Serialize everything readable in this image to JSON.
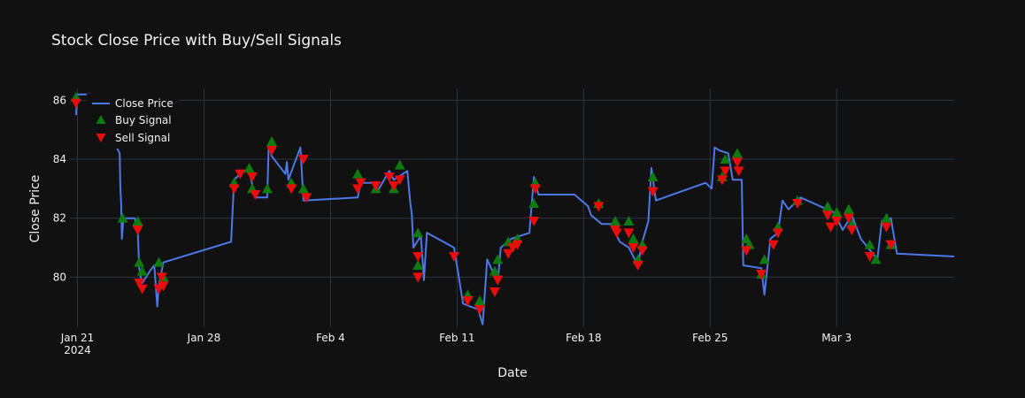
{
  "chart_data": {
    "type": "line",
    "title": "Stock Close Price with Buy/Sell Signals",
    "xlabel": "Date",
    "ylabel": "Close Price",
    "x_range": [
      "2024-01-20 14:00",
      "2024-03-09 12:00"
    ],
    "ylim": [
      78.3,
      86.4
    ],
    "x_ticks": [
      {
        "date": "2024-01-21",
        "label": "Jan 21",
        "sublabel": "2024"
      },
      {
        "date": "2024-01-28",
        "label": "Jan 28",
        "sublabel": ""
      },
      {
        "date": "2024-02-04",
        "label": "Feb 4",
        "sublabel": ""
      },
      {
        "date": "2024-02-11",
        "label": "Feb 11",
        "sublabel": ""
      },
      {
        "date": "2024-02-18",
        "label": "Feb 18",
        "sublabel": ""
      },
      {
        "date": "2024-02-25",
        "label": "Feb 25",
        "sublabel": ""
      },
      {
        "date": "2024-03-03",
        "label": "Mar 3",
        "sublabel": ""
      }
    ],
    "y_ticks": [
      80,
      82,
      84,
      86
    ],
    "grid": true,
    "legend": {
      "placement": "top-left",
      "entries": [
        "Close Price",
        "Buy Signal",
        "Sell Signal"
      ]
    },
    "series": [
      {
        "name": "Close Price",
        "kind": "line",
        "color": "#4c78e8",
        "points": [
          [
            "2024-01-20 22:00",
            85.5
          ],
          [
            "2024-01-21 00:00",
            86.2
          ],
          [
            "2024-01-21 18:00",
            86.2
          ],
          [
            "2024-01-23 08:00",
            84.2
          ],
          [
            "2024-01-23 09:00",
            83.0
          ],
          [
            "2024-01-23 10:00",
            82.5
          ],
          [
            "2024-01-23 11:00",
            81.3
          ],
          [
            "2024-01-23 13:00",
            82.0
          ],
          [
            "2024-01-24 04:00",
            82.0
          ],
          [
            "2024-01-24 08:00",
            81.6
          ],
          [
            "2024-01-24 10:00",
            80.3
          ],
          [
            "2024-01-24 12:00",
            80.0
          ],
          [
            "2024-01-24 14:00",
            79.8
          ],
          [
            "2024-01-25 00:00",
            80.2
          ],
          [
            "2024-01-25 06:00",
            80.4
          ],
          [
            "2024-01-25 10:00",
            79.0
          ],
          [
            "2024-01-25 12:00",
            79.7
          ],
          [
            "2024-01-25 18:00",
            80.5
          ],
          [
            "2024-01-29 12:00",
            81.2
          ],
          [
            "2024-01-29 16:00",
            83.3
          ],
          [
            "2024-01-30 04:00",
            83.6
          ],
          [
            "2024-01-30 12:00",
            83.6
          ],
          [
            "2024-01-30 20:00",
            82.7
          ],
          [
            "2024-01-31 12:00",
            82.7
          ],
          [
            "2024-01-31 14:00",
            84.5
          ],
          [
            "2024-01-31 18:00",
            84.1
          ],
          [
            "2024-02-01 12:00",
            83.5
          ],
          [
            "2024-02-01 14:00",
            83.9
          ],
          [
            "2024-02-01 16:00",
            83.3
          ],
          [
            "2024-02-02 08:00",
            84.4
          ],
          [
            "2024-02-02 12:00",
            82.6
          ],
          [
            "2024-02-05 12:00",
            82.7
          ],
          [
            "2024-02-05 16:00",
            83.2
          ],
          [
            "2024-02-06 12:00",
            83.2
          ],
          [
            "2024-02-06 14:00",
            82.9
          ],
          [
            "2024-02-07 06:00",
            83.6
          ],
          [
            "2024-02-07 12:00",
            83.3
          ],
          [
            "2024-02-08 06:00",
            83.6
          ],
          [
            "2024-02-08 10:00",
            82.5
          ],
          [
            "2024-02-08 12:00",
            82.1
          ],
          [
            "2024-02-08 14:00",
            81.0
          ],
          [
            "2024-02-09 00:00",
            81.4
          ],
          [
            "2024-02-09 04:00",
            79.9
          ],
          [
            "2024-02-09 08:00",
            81.5
          ],
          [
            "2024-02-10 20:00",
            81.0
          ],
          [
            "2024-02-11 08:00",
            79.1
          ],
          [
            "2024-02-12 04:00",
            78.9
          ],
          [
            "2024-02-12 10:00",
            78.4
          ],
          [
            "2024-02-12 16:00",
            80.6
          ],
          [
            "2024-02-13 06:00",
            79.8
          ],
          [
            "2024-02-13 10:00",
            81.0
          ],
          [
            "2024-02-14 00:00",
            81.3
          ],
          [
            "2024-02-15 00:00",
            81.5
          ],
          [
            "2024-02-15 06:00",
            83.4
          ],
          [
            "2024-02-15 12:00",
            82.8
          ],
          [
            "2024-02-17 12:00",
            82.8
          ],
          [
            "2024-02-18 06:00",
            82.4
          ],
          [
            "2024-02-18 10:00",
            82.1
          ],
          [
            "2024-02-19 00:00",
            81.8
          ],
          [
            "2024-02-19 12:00",
            81.8
          ],
          [
            "2024-02-20 00:00",
            81.2
          ],
          [
            "2024-02-20 12:00",
            81.0
          ],
          [
            "2024-02-21 00:00",
            80.4
          ],
          [
            "2024-02-21 06:00",
            81.2
          ],
          [
            "2024-02-21 14:00",
            81.9
          ],
          [
            "2024-02-21 18:00",
            83.7
          ],
          [
            "2024-02-22 00:00",
            82.6
          ],
          [
            "2024-02-24 18:00",
            83.2
          ],
          [
            "2024-02-25 02:00",
            83.0
          ],
          [
            "2024-02-25 06:00",
            84.4
          ],
          [
            "2024-02-25 12:00",
            84.3
          ],
          [
            "2024-02-26 00:00",
            84.2
          ],
          [
            "2024-02-26 06:00",
            83.3
          ],
          [
            "2024-02-26 18:00",
            83.3
          ],
          [
            "2024-02-26 20:00",
            80.4
          ],
          [
            "2024-02-27 20:00",
            80.3
          ],
          [
            "2024-02-28 00:00",
            79.4
          ],
          [
            "2024-02-28 08:00",
            81.3
          ],
          [
            "2024-02-28 18:00",
            81.5
          ],
          [
            "2024-02-29 00:00",
            82.6
          ],
          [
            "2024-02-29 08:00",
            82.3
          ],
          [
            "2024-03-01 00:00",
            82.7
          ],
          [
            "2024-03-02 20:00",
            82.2
          ],
          [
            "2024-03-03 08:00",
            81.6
          ],
          [
            "2024-03-03 20:00",
            82.1
          ],
          [
            "2024-03-04 08:00",
            81.3
          ],
          [
            "2024-03-05 06:00",
            80.6
          ],
          [
            "2024-03-05 12:00",
            81.9
          ],
          [
            "2024-03-06 00:00",
            82.0
          ],
          [
            "2024-03-06 08:00",
            80.8
          ],
          [
            "2024-03-09 12:00",
            80.7
          ]
        ]
      },
      {
        "name": "Buy Signal",
        "kind": "markers",
        "symbol": "triangle-up",
        "color": "#0f7a0f",
        "points": [
          [
            "2024-01-20 22:00",
            86.1
          ],
          [
            "2024-01-23 12:00",
            82.0
          ],
          [
            "2024-01-24 08:00",
            81.9
          ],
          [
            "2024-01-24 10:00",
            80.5
          ],
          [
            "2024-01-24 14:00",
            80.2
          ],
          [
            "2024-01-25 12:00",
            80.5
          ],
          [
            "2024-01-25 18:00",
            80.0
          ],
          [
            "2024-01-29 16:00",
            83.2
          ],
          [
            "2024-01-30 12:00",
            83.7
          ],
          [
            "2024-01-30 16:00",
            83.0
          ],
          [
            "2024-01-31 12:00",
            83.0
          ],
          [
            "2024-01-31 18:00",
            84.6
          ],
          [
            "2024-02-01 20:00",
            83.2
          ],
          [
            "2024-02-02 12:00",
            83.0
          ],
          [
            "2024-02-05 12:00",
            83.5
          ],
          [
            "2024-02-06 12:00",
            83.0
          ],
          [
            "2024-02-07 12:00",
            83.0
          ],
          [
            "2024-02-07 20:00",
            83.8
          ],
          [
            "2024-02-08 20:00",
            81.5
          ],
          [
            "2024-02-08 20:01",
            80.4
          ],
          [
            "2024-02-11 14:00",
            79.4
          ],
          [
            "2024-02-12 06:00",
            79.2
          ],
          [
            "2024-02-13 02:00",
            80.2
          ],
          [
            "2024-02-13 06:00",
            80.6
          ],
          [
            "2024-02-13 20:00",
            81.2
          ],
          [
            "2024-02-14 08:00",
            81.3
          ],
          [
            "2024-02-15 06:00",
            82.5
          ],
          [
            "2024-02-15 08:00",
            83.2
          ],
          [
            "2024-02-18 20:00",
            82.5
          ],
          [
            "2024-02-19 18:00",
            81.9
          ],
          [
            "2024-02-20 12:00",
            81.9
          ],
          [
            "2024-02-20 18:00",
            81.3
          ],
          [
            "2024-02-21 00:00",
            80.6
          ],
          [
            "2024-02-21 06:00",
            81.1
          ],
          [
            "2024-02-21 20:00",
            83.4
          ],
          [
            "2024-02-25 16:00",
            83.4
          ],
          [
            "2024-02-25 20:00",
            84.0
          ],
          [
            "2024-02-26 12:00",
            84.2
          ],
          [
            "2024-02-27 00:00",
            81.3
          ],
          [
            "2024-02-27 04:00",
            81.1
          ],
          [
            "2024-02-27 20:00",
            80.1
          ],
          [
            "2024-02-28 00:00",
            80.6
          ],
          [
            "2024-02-28 18:00",
            81.7
          ],
          [
            "2024-02-29 20:00",
            82.6
          ],
          [
            "2024-03-02 12:00",
            82.4
          ],
          [
            "2024-03-03 00:00",
            82.2
          ],
          [
            "2024-03-03 16:00",
            82.3
          ],
          [
            "2024-03-03 20:00",
            81.8
          ],
          [
            "2024-03-04 20:00",
            81.1
          ],
          [
            "2024-03-05 04:00",
            80.6
          ],
          [
            "2024-03-05 18:00",
            82.0
          ],
          [
            "2024-03-06 00:00",
            81.1
          ]
        ]
      },
      {
        "name": "Sell Signal",
        "kind": "markers",
        "symbol": "triangle-down",
        "color": "#e80c0c",
        "points": [
          [
            "2024-01-20 22:00",
            85.9
          ],
          [
            "2024-01-24 08:00",
            81.6
          ],
          [
            "2024-01-24 10:00",
            79.8
          ],
          [
            "2024-01-24 14:00",
            79.6
          ],
          [
            "2024-01-25 12:00",
            79.6
          ],
          [
            "2024-01-25 16:00",
            80.0
          ],
          [
            "2024-01-25 18:00",
            79.7
          ],
          [
            "2024-01-29 16:00",
            83.0
          ],
          [
            "2024-01-30 00:00",
            83.5
          ],
          [
            "2024-01-30 16:00",
            83.4
          ],
          [
            "2024-01-30 20:00",
            82.8
          ],
          [
            "2024-01-31 18:00",
            84.3
          ],
          [
            "2024-02-01 20:00",
            83.0
          ],
          [
            "2024-02-02 12:00",
            84.0
          ],
          [
            "2024-02-02 16:00",
            82.7
          ],
          [
            "2024-02-05 12:00",
            83.0
          ],
          [
            "2024-02-05 16:00",
            83.2
          ],
          [
            "2024-02-06 12:00",
            83.1
          ],
          [
            "2024-02-07 06:00",
            83.4
          ],
          [
            "2024-02-07 12:00",
            83.1
          ],
          [
            "2024-02-07 20:00",
            83.3
          ],
          [
            "2024-02-08 20:00",
            80.7
          ],
          [
            "2024-02-08 20:01",
            80.0
          ],
          [
            "2024-02-10 20:00",
            80.7
          ],
          [
            "2024-02-11 14:00",
            79.2
          ],
          [
            "2024-02-12 06:00",
            78.9
          ],
          [
            "2024-02-13 02:00",
            79.5
          ],
          [
            "2024-02-13 06:00",
            79.9
          ],
          [
            "2024-02-13 20:00",
            80.8
          ],
          [
            "2024-02-14 02:00",
            81.0
          ],
          [
            "2024-02-14 08:00",
            81.1
          ],
          [
            "2024-02-15 06:00",
            81.9
          ],
          [
            "2024-02-15 08:00",
            83.0
          ],
          [
            "2024-02-18 20:00",
            82.4
          ],
          [
            "2024-02-19 18:00",
            81.6
          ],
          [
            "2024-02-19 20:00",
            81.5
          ],
          [
            "2024-02-20 12:00",
            81.5
          ],
          [
            "2024-02-20 18:00",
            81.0
          ],
          [
            "2024-02-21 00:00",
            80.4
          ],
          [
            "2024-02-21 06:00",
            80.9
          ],
          [
            "2024-02-21 20:00",
            82.9
          ],
          [
            "2024-02-25 16:00",
            83.3
          ],
          [
            "2024-02-25 20:00",
            83.6
          ],
          [
            "2024-02-26 12:00",
            83.9
          ],
          [
            "2024-02-26 14:00",
            83.6
          ],
          [
            "2024-02-27 00:00",
            80.9
          ],
          [
            "2024-02-27 20:00",
            80.1
          ],
          [
            "2024-02-28 12:00",
            81.1
          ],
          [
            "2024-02-28 18:00",
            81.5
          ],
          [
            "2024-02-29 20:00",
            82.5
          ],
          [
            "2024-03-02 12:00",
            82.1
          ],
          [
            "2024-03-02 16:00",
            81.7
          ],
          [
            "2024-03-03 00:00",
            81.9
          ],
          [
            "2024-03-03 16:00",
            82.0
          ],
          [
            "2024-03-03 20:00",
            81.6
          ],
          [
            "2024-03-04 20:00",
            80.7
          ],
          [
            "2024-03-05 18:00",
            81.7
          ],
          [
            "2024-03-06 00:00",
            81.1
          ]
        ]
      }
    ]
  }
}
